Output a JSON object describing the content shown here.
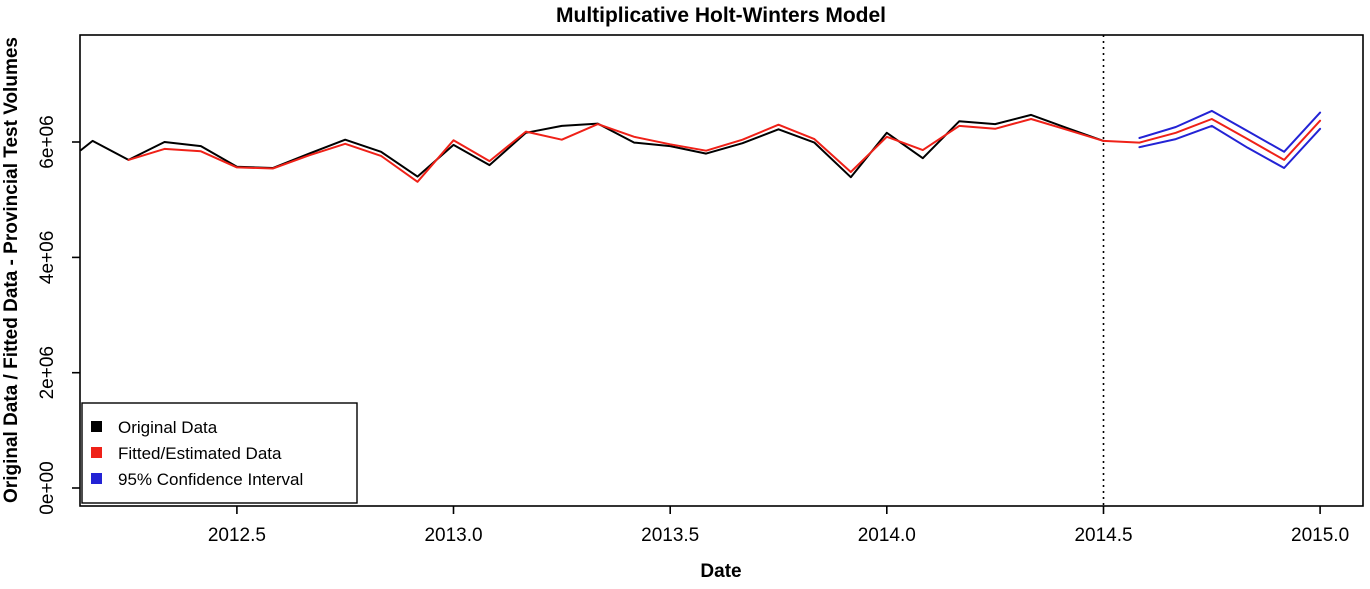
{
  "chart_data": {
    "type": "line",
    "title": "Multiplicative Holt-Winters Model",
    "xlabel": "Date",
    "ylabel": "Original Data / Fitted Data - Provincial Test Volumes",
    "grid": false,
    "legend_position": "bottom-left",
    "xlim": [
      2012.138,
      2015.099
    ],
    "ylim": [
      -312000,
      7856000
    ],
    "x_ticks": [
      {
        "value": 2012.5,
        "label": "2012.5"
      },
      {
        "value": 2013.0,
        "label": "2013.0"
      },
      {
        "value": 2013.5,
        "label": "2013.5"
      },
      {
        "value": 2014.0,
        "label": "2014.0"
      },
      {
        "value": 2014.5,
        "label": "2014.5"
      },
      {
        "value": 2015.0,
        "label": "2015.0"
      }
    ],
    "y_ticks": [
      {
        "value": 0,
        "label": "0e+00"
      },
      {
        "value": 2000000,
        "label": "2e+06"
      },
      {
        "value": 4000000,
        "label": "4e+06"
      },
      {
        "value": 6000000,
        "label": "6e+06"
      }
    ],
    "forecast_start_line": {
      "x": 2014.5,
      "style": "dotted",
      "color": "#000000"
    },
    "series": [
      {
        "name": "Original Data",
        "color": "#000000",
        "x": [
          2012.14,
          2012.167,
          2012.25,
          2012.333,
          2012.417,
          2012.5,
          2012.583,
          2012.667,
          2012.75,
          2012.833,
          2012.917,
          2013.0,
          2013.083,
          2013.167,
          2013.25,
          2013.333,
          2013.417,
          2013.5,
          2013.583,
          2013.667,
          2013.75,
          2013.833,
          2013.917,
          2014.0,
          2014.083,
          2014.167,
          2014.25,
          2014.333,
          2014.417,
          2014.5
        ],
        "y": [
          5860000,
          6020000,
          5690000,
          6000000,
          5930000,
          5570000,
          5550000,
          5800000,
          6040000,
          5830000,
          5400000,
          5950000,
          5600000,
          6160000,
          6280000,
          6320000,
          5990000,
          5930000,
          5800000,
          5980000,
          6220000,
          5990000,
          5390000,
          6160000,
          5720000,
          6360000,
          6310000,
          6470000,
          6240000,
          6020000
        ]
      },
      {
        "name": "Fitted/Estimated Data",
        "color": "#ef2118",
        "x": [
          2012.25,
          2012.333,
          2012.417,
          2012.5,
          2012.583,
          2012.667,
          2012.75,
          2012.833,
          2012.917,
          2013.0,
          2013.083,
          2013.167,
          2013.25,
          2013.333,
          2013.417,
          2013.5,
          2013.583,
          2013.667,
          2013.75,
          2013.833,
          2013.917,
          2014.0,
          2014.083,
          2014.167,
          2014.25,
          2014.333,
          2014.417,
          2014.5
        ],
        "y": [
          5690000,
          5880000,
          5840000,
          5560000,
          5540000,
          5770000,
          5970000,
          5760000,
          5310000,
          6030000,
          5670000,
          6180000,
          6040000,
          6310000,
          6090000,
          5960000,
          5850000,
          6040000,
          6300000,
          6050000,
          5480000,
          6090000,
          5860000,
          6280000,
          6230000,
          6400000,
          6210000,
          6020000
        ]
      },
      {
        "name": "Forecast",
        "color": "#ef2118",
        "x": [
          2014.5,
          2014.583,
          2014.667,
          2014.75,
          2014.833,
          2014.917,
          2015.0
        ],
        "y": [
          6020000,
          5990000,
          6160000,
          6400000,
          6050000,
          5690000,
          6370000
        ]
      },
      {
        "name": "95% CI Upper",
        "color": "#2323d5",
        "x": [
          2014.583,
          2014.667,
          2014.75,
          2014.833,
          2014.917,
          2015.0
        ],
        "y": [
          6070000,
          6260000,
          6540000,
          6190000,
          5830000,
          6510000
        ]
      },
      {
        "name": "95% CI Lower",
        "color": "#2323d5",
        "x": [
          2014.583,
          2014.667,
          2014.75,
          2014.833,
          2014.917,
          2015.0
        ],
        "y": [
          5910000,
          6050000,
          6280000,
          5900000,
          5550000,
          6230000
        ]
      }
    ],
    "legend": [
      {
        "label": "Original Data",
        "color": "#000000"
      },
      {
        "label": "Fitted/Estimated Data",
        "color": "#ef2118"
      },
      {
        "label": "95% Confidence Interval",
        "color": "#2323d5"
      }
    ]
  }
}
